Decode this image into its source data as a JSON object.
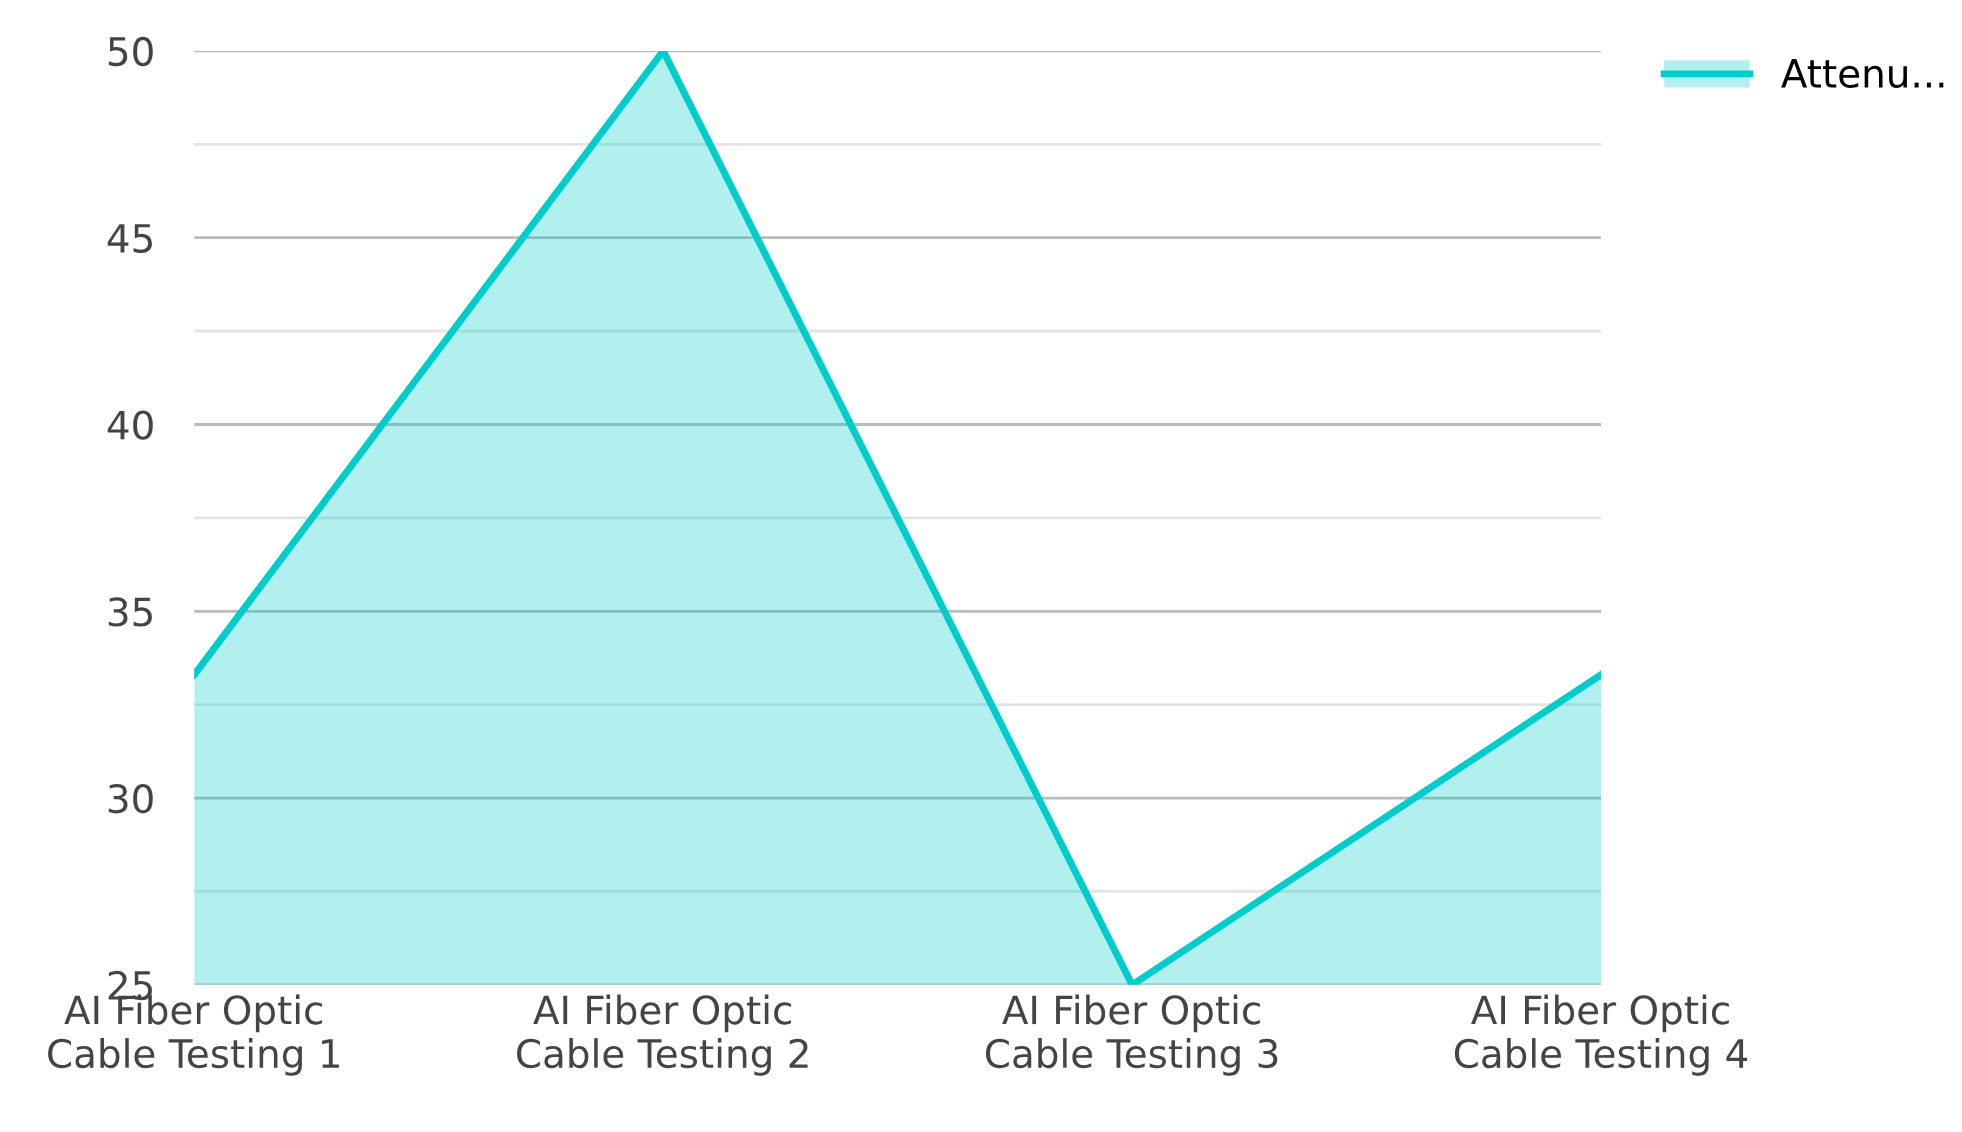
{
  "chart_data": {
    "type": "area",
    "categories": [
      "AI Fiber Optic\nCable Testing 1",
      "AI Fiber Optic\nCable Testing 2",
      "AI Fiber Optic\nCable Testing 3",
      "AI Fiber Optic\nCable Testing 4"
    ],
    "series": [
      {
        "name": "Attenu...",
        "color": "#00cccc",
        "values": [
          33.3,
          50,
          25,
          33.3
        ]
      }
    ],
    "ylim": [
      25,
      50
    ],
    "yticks": [
      25,
      {
        "value": 27.5,
        "label": null
      },
      30,
      {
        "value": 32.5,
        "label": null
      },
      35,
      {
        "value": 37.5,
        "label": null
      },
      40,
      {
        "value": 42.5,
        "label": null
      },
      45,
      {
        "value": 47.5,
        "label": null
      },
      50
    ],
    "grid": "y",
    "legend": "top right",
    "marker": "none",
    "line_style": "solid"
  }
}
